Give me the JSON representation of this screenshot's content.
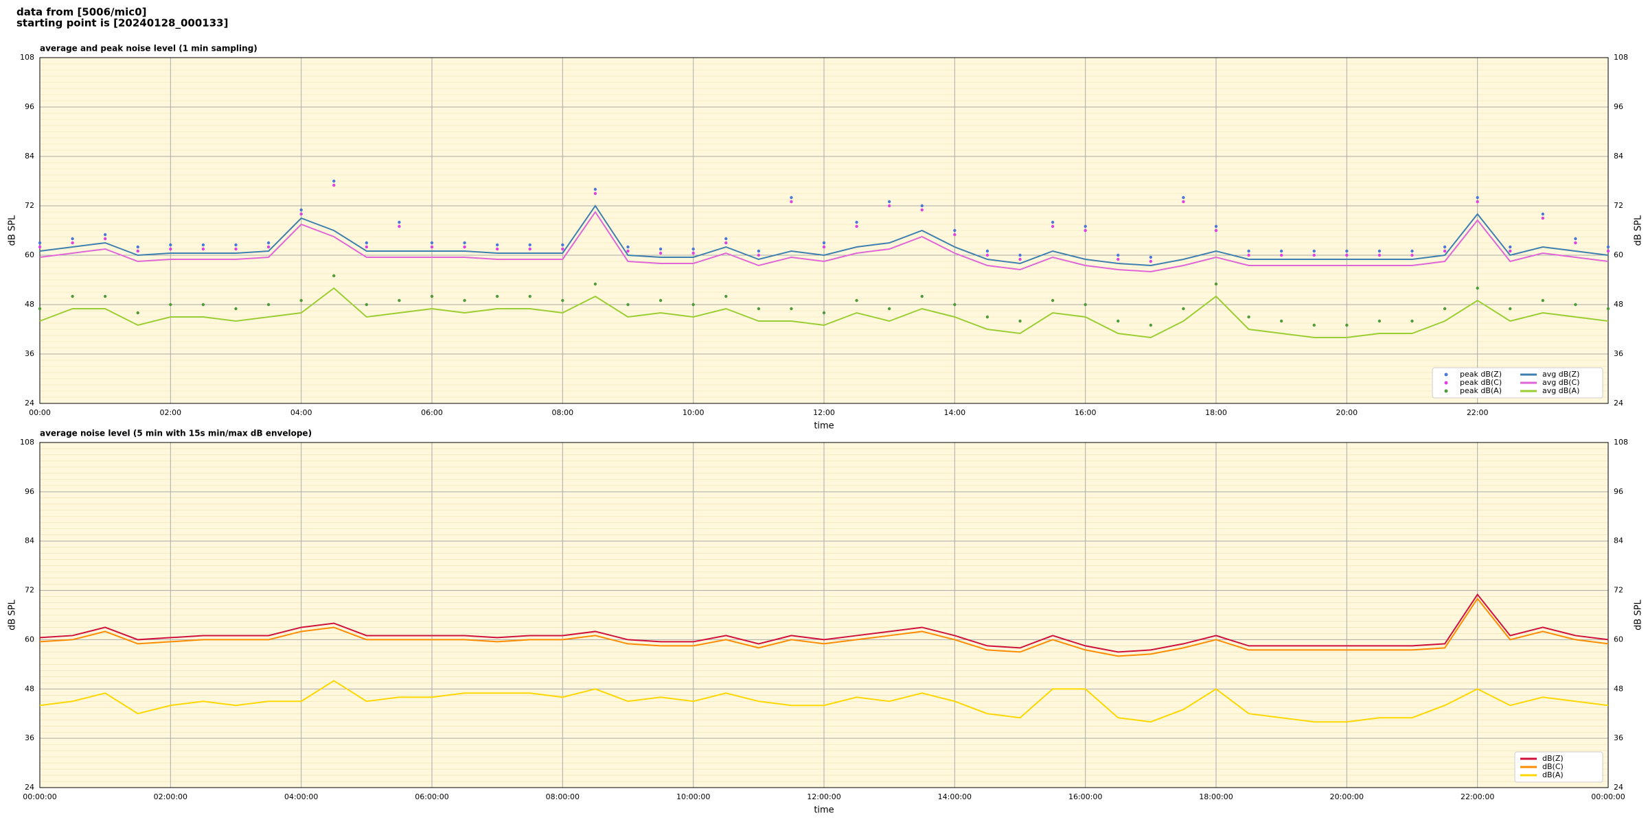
{
  "header": {
    "lines": [
      "data from [5006/mic0]",
      "starting point is [20240128_000133]"
    ]
  },
  "chart_data": [
    {
      "type": "line",
      "title": "average and peak noise level (1 min sampling)",
      "xlabel": "time",
      "ylabel": "dB SPL",
      "x": [
        0,
        0.5,
        1,
        1.5,
        2,
        2.5,
        3,
        3.5,
        4,
        4.5,
        5,
        5.5,
        6,
        6.5,
        7,
        7.5,
        8,
        8.5,
        9,
        9.5,
        10,
        10.5,
        11,
        11.5,
        12,
        12.5,
        13,
        13.5,
        14,
        14.5,
        15,
        15.5,
        16,
        16.5,
        17,
        17.5,
        18,
        18.5,
        19,
        19.5,
        20,
        20.5,
        21,
        21.5,
        22,
        22.5,
        23,
        23.5,
        24
      ],
      "xlim": [
        0,
        24
      ],
      "xticks": [
        {
          "value": 0,
          "label": "00:00"
        },
        {
          "value": 2,
          "label": "02:00"
        },
        {
          "value": 4,
          "label": "04:00"
        },
        {
          "value": 6,
          "label": "06:00"
        },
        {
          "value": 8,
          "label": "08:00"
        },
        {
          "value": 10,
          "label": "10:00"
        },
        {
          "value": 12,
          "label": "12:00"
        },
        {
          "value": 14,
          "label": "14:00"
        },
        {
          "value": 16,
          "label": "16:00"
        },
        {
          "value": 18,
          "label": "18:00"
        },
        {
          "value": 20,
          "label": "20:00"
        },
        {
          "value": 22,
          "label": "22:00"
        }
      ],
      "ylim": [
        24,
        108
      ],
      "yticks": [
        24,
        36,
        48,
        60,
        72,
        84,
        96,
        108
      ],
      "grid": true,
      "legend": "lower right",
      "legend_columns": 2,
      "series": [
        {
          "name": "peak dB(Z)",
          "mark": "dot",
          "color": "#4a78d8",
          "values": [
            63,
            64,
            65,
            62,
            62.5,
            62.5,
            62.5,
            63,
            71,
            78,
            63,
            68,
            63,
            63,
            62.5,
            62.5,
            62.5,
            76,
            62,
            61.5,
            61.5,
            64,
            61,
            74,
            63,
            68,
            73,
            72,
            66,
            61,
            60,
            68,
            67,
            60,
            59.5,
            74,
            67,
            61,
            61,
            61,
            61,
            61,
            61,
            62,
            74,
            62,
            70,
            64,
            62
          ]
        },
        {
          "name": "peak dB(C)",
          "mark": "dot",
          "color": "#e040e0",
          "values": [
            62,
            63,
            64,
            61,
            61.5,
            61.5,
            61.5,
            62,
            70,
            77,
            62,
            67,
            62,
            62,
            61.5,
            61.5,
            61.5,
            75,
            61,
            60.5,
            60.5,
            63,
            60,
            73,
            62,
            67,
            72,
            71,
            65,
            60,
            59,
            67,
            66,
            59,
            58.5,
            73,
            66,
            60,
            60,
            60,
            60,
            60,
            60,
            61,
            73,
            61,
            69,
            63,
            61
          ]
        },
        {
          "name": "peak dB(A)",
          "mark": "dot",
          "color": "#4f9a3a",
          "values": [
            47,
            50,
            50,
            46,
            48,
            48,
            47,
            48,
            49,
            55,
            48,
            49,
            50,
            49,
            50,
            50,
            49,
            53,
            48,
            49,
            48,
            50,
            47,
            47,
            46,
            49,
            47,
            50,
            48,
            45,
            44,
            49,
            48,
            44,
            43,
            47,
            53,
            45,
            44,
            43,
            43,
            44,
            44,
            47,
            52,
            47,
            49,
            48,
            47
          ]
        },
        {
          "name": "avg dB(Z)",
          "mark": "line",
          "color": "#3d7fae",
          "values": [
            61,
            62,
            63,
            60,
            60.5,
            60.5,
            60.5,
            61,
            69,
            66,
            61,
            61,
            61,
            61,
            60.5,
            60.5,
            60.5,
            72,
            60,
            59.5,
            59.5,
            62,
            59,
            61,
            60,
            62,
            63,
            66,
            62,
            59,
            58,
            61,
            59,
            58,
            57.5,
            59,
            61,
            59,
            59,
            59,
            59,
            59,
            59,
            60,
            70,
            60,
            62,
            61,
            60
          ]
        },
        {
          "name": "avg dB(C)",
          "mark": "line",
          "color": "#e066d8",
          "values": [
            59.5,
            60.5,
            61.5,
            58.5,
            59,
            59,
            59,
            59.5,
            67.5,
            64.5,
            59.5,
            59.5,
            59.5,
            59.5,
            59,
            59,
            59,
            70.5,
            58.5,
            58,
            58,
            60.5,
            57.5,
            59.5,
            58.5,
            60.5,
            61.5,
            64.5,
            60.5,
            57.5,
            56.5,
            59.5,
            57.5,
            56.5,
            56,
            57.5,
            59.5,
            57.5,
            57.5,
            57.5,
            57.5,
            57.5,
            57.5,
            58.5,
            68.5,
            58.5,
            60.5,
            59.5,
            58.5
          ]
        },
        {
          "name": "avg dB(A)",
          "mark": "line",
          "color": "#9acd32",
          "values": [
            44,
            47,
            47,
            43,
            45,
            45,
            44,
            45,
            46,
            52,
            45,
            46,
            47,
            46,
            47,
            47,
            46,
            50,
            45,
            46,
            45,
            47,
            44,
            44,
            43,
            46,
            44,
            47,
            45,
            42,
            41,
            46,
            45,
            41,
            40,
            44,
            50,
            42,
            41,
            40,
            40,
            41,
            41,
            44,
            49,
            44,
            46,
            45,
            44
          ]
        }
      ]
    },
    {
      "type": "line",
      "title": "average noise level (5 min with 15s min/max dB envelope)",
      "xlabel": "time",
      "ylabel": "dB SPL",
      "x": [
        0,
        0.5,
        1,
        1.5,
        2,
        2.5,
        3,
        3.5,
        4,
        4.5,
        5,
        5.5,
        6,
        6.5,
        7,
        7.5,
        8,
        8.5,
        9,
        9.5,
        10,
        10.5,
        11,
        11.5,
        12,
        12.5,
        13,
        13.5,
        14,
        14.5,
        15,
        15.5,
        16,
        16.5,
        17,
        17.5,
        18,
        18.5,
        19,
        19.5,
        20,
        20.5,
        21,
        21.5,
        22,
        22.5,
        23,
        23.5,
        24
      ],
      "xlim": [
        0,
        24
      ],
      "xticks": [
        {
          "value": 0,
          "label": "00:00:00"
        },
        {
          "value": 2,
          "label": "02:00:00"
        },
        {
          "value": 4,
          "label": "04:00:00"
        },
        {
          "value": 6,
          "label": "06:00:00"
        },
        {
          "value": 8,
          "label": "08:00:00"
        },
        {
          "value": 10,
          "label": "10:00:00"
        },
        {
          "value": 12,
          "label": "12:00:00"
        },
        {
          "value": 14,
          "label": "14:00:00"
        },
        {
          "value": 16,
          "label": "16:00:00"
        },
        {
          "value": 18,
          "label": "18:00:00"
        },
        {
          "value": 20,
          "label": "20:00:00"
        },
        {
          "value": 22,
          "label": "22:00:00"
        },
        {
          "value": 24,
          "label": "00:00:00"
        }
      ],
      "ylim": [
        24,
        108
      ],
      "yticks": [
        24,
        36,
        48,
        60,
        72,
        84,
        96,
        108
      ],
      "grid": true,
      "legend": "lower right",
      "legend_columns": 1,
      "series": [
        {
          "name": "dB(Z)",
          "mark": "line",
          "color": "#d0103a",
          "values": [
            60.5,
            61,
            63,
            60,
            60.5,
            61,
            61,
            61,
            63,
            64,
            61,
            61,
            61,
            61,
            60.5,
            61,
            61,
            62,
            60,
            59.5,
            59.5,
            61,
            59,
            61,
            60,
            61,
            62,
            63,
            61,
            58.5,
            58,
            61,
            58.5,
            57,
            57.5,
            59,
            61,
            58.5,
            58.5,
            58.5,
            58.5,
            58.5,
            58.5,
            59,
            71,
            61,
            63,
            61,
            60
          ]
        },
        {
          "name": "dB(C)",
          "mark": "line",
          "color": "#ff8c00",
          "values": [
            59.5,
            60,
            62,
            59,
            59.5,
            60,
            60,
            60,
            62,
            63,
            60,
            60,
            60,
            60,
            59.5,
            60,
            60,
            61,
            59,
            58.5,
            58.5,
            60,
            58,
            60,
            59,
            60,
            61,
            62,
            60,
            57.5,
            57,
            60,
            57.5,
            56,
            56.5,
            58,
            60,
            57.5,
            57.5,
            57.5,
            57.5,
            57.5,
            57.5,
            58,
            70,
            60,
            62,
            60,
            59
          ]
        },
        {
          "name": "dB(A)",
          "mark": "line",
          "color": "#ffd700",
          "values": [
            44,
            45,
            47,
            42,
            44,
            45,
            44,
            45,
            45,
            50,
            45,
            46,
            46,
            47,
            47,
            47,
            46,
            48,
            45,
            46,
            45,
            47,
            45,
            44,
            44,
            46,
            45,
            47,
            45,
            42,
            41,
            48,
            48,
            41,
            40,
            43,
            48,
            42,
            41,
            40,
            40,
            41,
            41,
            44,
            48,
            44,
            46,
            45,
            44
          ]
        }
      ]
    }
  ]
}
